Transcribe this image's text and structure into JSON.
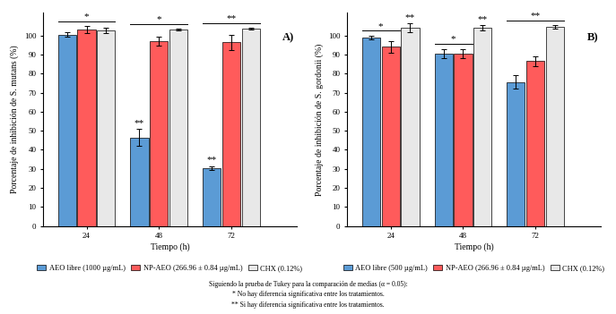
{
  "chart_data": [
    {
      "type": "bar",
      "panel_label": "A)",
      "x_label": "Tiempo (h)",
      "y_label": "Porcentaje de inhibición de S. mutans (%)",
      "categories": [
        "24",
        "48",
        "72"
      ],
      "ylim": [
        0,
        112
      ],
      "yticks": [
        0,
        10,
        20,
        30,
        40,
        50,
        60,
        70,
        80,
        90,
        100
      ],
      "legend": "below",
      "series": [
        {
          "name": "AEO libre (1000 µg/mL)",
          "color": "#5B9BD5",
          "values": [
            100.5,
            46.5,
            30.5
          ],
          "errors": [
            1.0,
            4.5,
            1.0
          ]
        },
        {
          "name": "NP-AEO (266.96 ± 0.84 µg/mL)",
          "color": "#FF5B5B",
          "values": [
            103,
            97,
            96.5
          ],
          "errors": [
            2.0,
            2.5,
            4.0
          ]
        },
        {
          "name": "CHX (0.12%)",
          "color": "#E8E8E8",
          "values": [
            102.5,
            103,
            103.5
          ],
          "errors": [
            1.5,
            0.5,
            0.5
          ]
        }
      ],
      "annotations": [
        {
          "text": "*",
          "category": "24",
          "series": [
            0,
            1,
            2
          ]
        },
        {
          "text": "*",
          "category": "48",
          "series": [
            0,
            1,
            2
          ]
        },
        {
          "text": "**",
          "category": "72",
          "series": [
            0,
            1,
            2
          ]
        },
        {
          "text": "**",
          "category": "48",
          "series": [
            0
          ]
        },
        {
          "text": "**",
          "category": "72",
          "series": [
            0
          ]
        }
      ]
    },
    {
      "type": "bar",
      "panel_label": "B)",
      "x_label": "Tiempo (h)",
      "y_label": "Porcentaje de inhibición de S. gordonii (%)",
      "categories": [
        "24",
        "48",
        "72"
      ],
      "ylim": [
        0,
        112
      ],
      "yticks": [
        0,
        10,
        20,
        30,
        40,
        50,
        60,
        70,
        80,
        90,
        100
      ],
      "legend": "below",
      "series": [
        {
          "name": "AEO libre (500 µg/mL)",
          "color": "#5B9BD5",
          "values": [
            99,
            90.5,
            75.5
          ],
          "errors": [
            1.0,
            2.5,
            3.5
          ]
        },
        {
          "name": "NP-AEO (266.96 ± 0.84 µg/mL)",
          "color": "#FF5B5B",
          "values": [
            94,
            90.5,
            86.5
          ],
          "errors": [
            3.0,
            2.5,
            2.5
          ]
        },
        {
          "name": "CHX (0.12%)",
          "color": "#E8E8E8",
          "values": [
            104,
            104,
            104.5
          ],
          "errors": [
            2.5,
            1.5,
            1.0
          ]
        }
      ],
      "annotations": [
        {
          "text": "*",
          "category": "24",
          "series": [
            0,
            1
          ]
        },
        {
          "text": "**",
          "category": "24",
          "series": [
            2
          ]
        },
        {
          "text": "*",
          "category": "48",
          "series": [
            0,
            1
          ]
        },
        {
          "text": "**",
          "category": "48",
          "series": [
            2
          ]
        },
        {
          "text": "**",
          "category": "72",
          "series": [
            0,
            1,
            2
          ]
        }
      ]
    }
  ],
  "footnotes": [
    "Siguiendo la prueba de Tukey para la comparación de medias (α = 0.05):",
    "* No hay diferencia significativa entre los tratamientos.",
    "** Si hay diferencia significativa entre los tratamientos."
  ]
}
